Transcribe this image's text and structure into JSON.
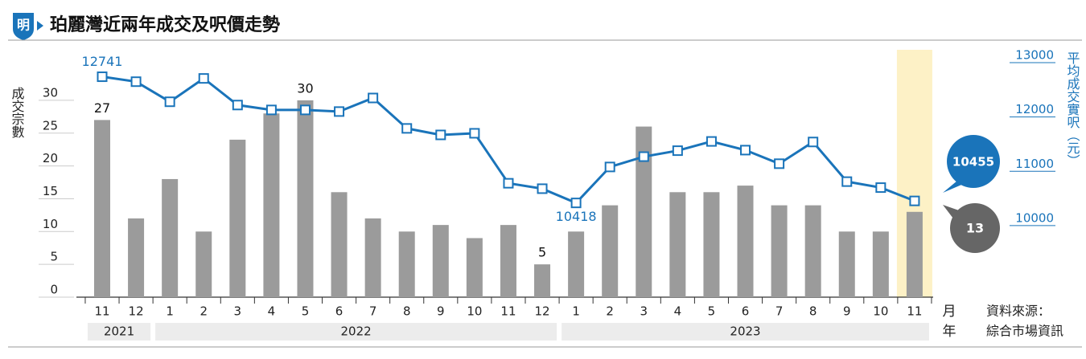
{
  "chart_data": {
    "type": "combo",
    "title": "珀麗灣近兩年成交及呎價走勢",
    "logo": "明",
    "ylabel": "成交宗數",
    "y2label": "平均成交實呎（元）",
    "xlabel": "月",
    "year_label": "年",
    "source": [
      "資料來源：",
      "綜合市場資訊"
    ],
    "categories": [
      "11",
      "12",
      "1",
      "2",
      "3",
      "4",
      "5",
      "6",
      "7",
      "8",
      "9",
      "10",
      "11",
      "12",
      "1",
      "2",
      "3",
      "4",
      "5",
      "6",
      "7",
      "8",
      "9",
      "10",
      "11"
    ],
    "year_groups": [
      {
        "label": "2021",
        "count": 2
      },
      {
        "label": "2022",
        "count": 12
      },
      {
        "label": "2023",
        "count": 11
      }
    ],
    "series": [
      {
        "type": "bar",
        "color": "#9b9b9b",
        "values": [
          27,
          12,
          18,
          10,
          24,
          28,
          30,
          16,
          12,
          10,
          11,
          9,
          11,
          5,
          10,
          14,
          26,
          16,
          16,
          17,
          14,
          14,
          10,
          10,
          13
        ],
        "labels_at": [
          0,
          6,
          13
        ]
      },
      {
        "type": "line",
        "axis": "y2",
        "color": "#1a74ba",
        "values": [
          12741,
          12650,
          12280,
          12710,
          12220,
          12130,
          12130,
          12100,
          12350,
          11790,
          11670,
          11700,
          10780,
          10680,
          10418,
          11080,
          11270,
          11380,
          11550,
          11390,
          11140,
          11540,
          10810,
          10700,
          10455
        ],
        "labels_at": [
          0,
          14
        ]
      }
    ],
    "highlight": 24,
    "ylim": [
      0,
      37.7
    ],
    "yticks": [
      0,
      5,
      10,
      15,
      20,
      25,
      30
    ],
    "y2lim": [
      8683,
      13237
    ],
    "y2ticks": [
      10000,
      11000,
      12000,
      13000
    ]
  }
}
